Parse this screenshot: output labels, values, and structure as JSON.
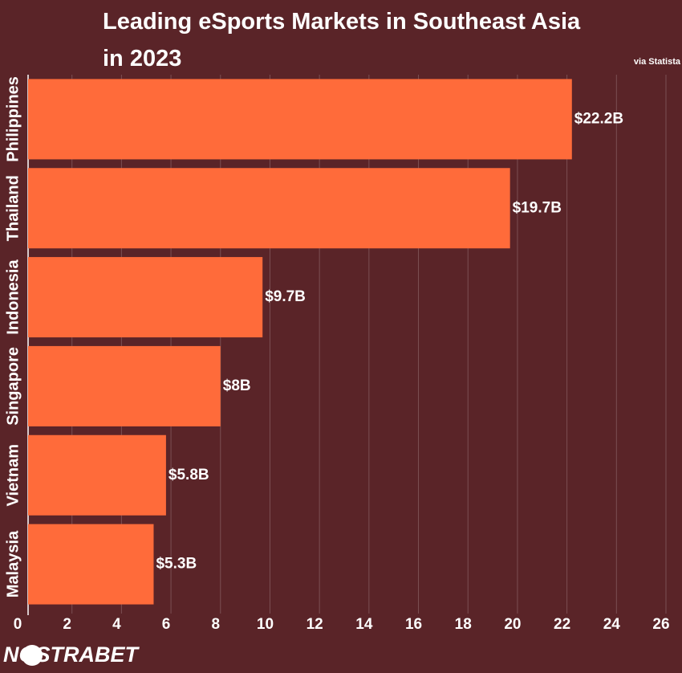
{
  "chart_data": {
    "type": "hbar",
    "title": "Leading eSports Markets in Southeast Asia in 2023",
    "source": "via Statista",
    "brand": "NOSTRABET",
    "categories": [
      "Philippines",
      "Thailand",
      "Indonesia",
      "Singapore",
      "Vietnam",
      "Malaysia"
    ],
    "values": [
      22.2,
      19.7,
      9.7,
      8,
      5.8,
      5.3
    ],
    "value_labels": [
      "$22.2B",
      "$19.7B",
      "$9.7B",
      "$8B",
      "$5.8B",
      "$5.3B"
    ],
    "color": "#ff6b3a",
    "xlim": [
      0,
      26
    ],
    "xticks": [
      0,
      2,
      4,
      6,
      8,
      10,
      12,
      14,
      16,
      18,
      20,
      22,
      24,
      26
    ],
    "grid": true
  }
}
